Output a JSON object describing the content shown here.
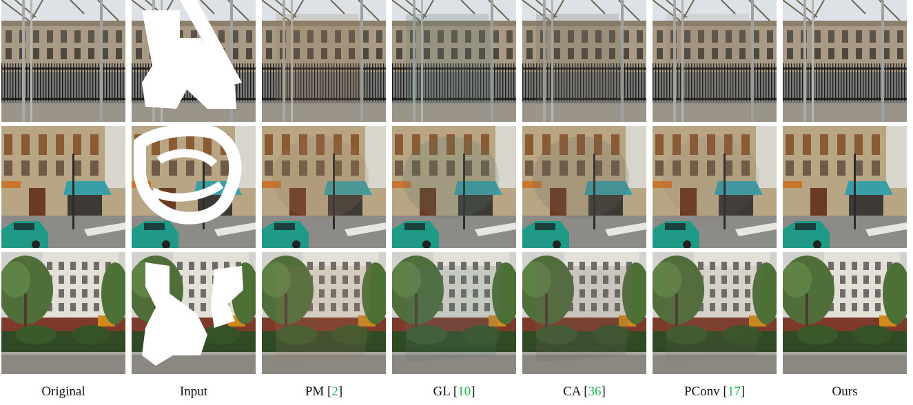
{
  "columns": [
    {
      "label": "Original",
      "ref": ""
    },
    {
      "label": "Input",
      "ref": ""
    },
    {
      "label": "PM",
      "ref": "2"
    },
    {
      "label": "GL",
      "ref": "10"
    },
    {
      "label": "CA",
      "ref": "36"
    },
    {
      "label": "PConv",
      "ref": "17"
    },
    {
      "label": "Ours",
      "ref": ""
    }
  ],
  "rows": [
    {
      "name": "row-building-fence",
      "scene": "building-fence"
    },
    {
      "name": "row-street-corner",
      "scene": "street-corner"
    },
    {
      "name": "row-trees-facade",
      "scene": "trees-facade"
    }
  ],
  "colors": {
    "reference_link": "#22b14c",
    "mask": "#ffffff",
    "awning": "#3a9ea6",
    "car": "#1f9a86"
  }
}
